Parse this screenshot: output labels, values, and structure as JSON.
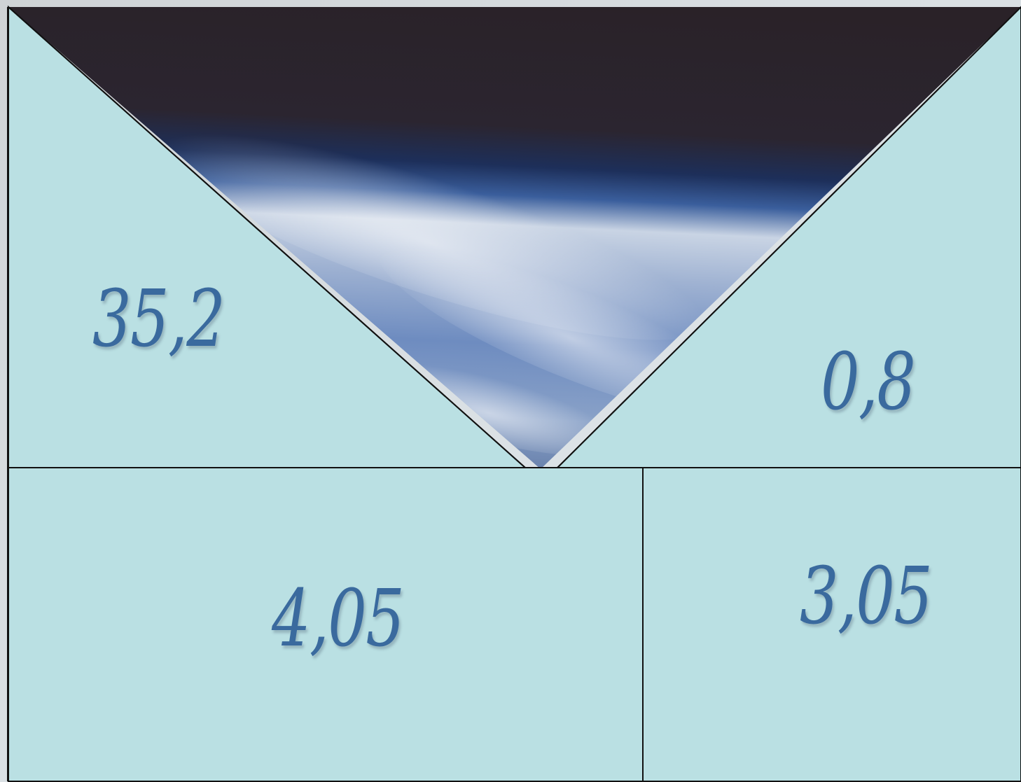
{
  "puzzle": {
    "top_left_value": "35,2",
    "top_right_value": "0,8",
    "bottom_left_value": "4,05",
    "bottom_right_value": "3,05"
  },
  "colors": {
    "tile_fill": "#bae0e3",
    "line": "#111111",
    "number": "#3a6a9e",
    "space_dark": "#2a2228",
    "earth_blue": "#5b7fb8"
  },
  "images": {
    "revealed": "earth-from-space"
  }
}
